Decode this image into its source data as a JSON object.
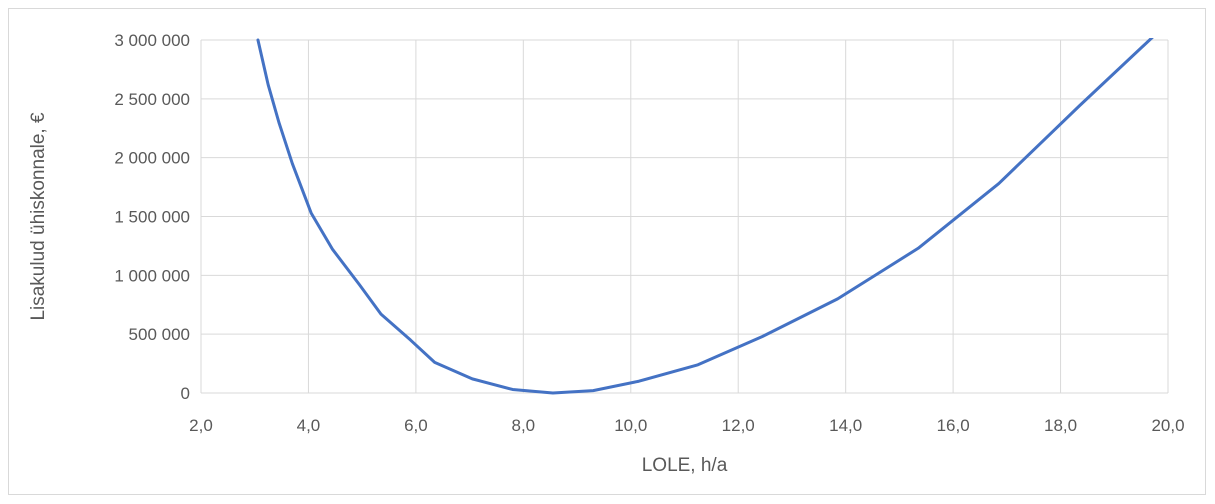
{
  "chart_data": {
    "type": "line",
    "xlabel": "LOLE, h/a",
    "ylabel": "Lisakulud ühiskonnale,  €",
    "xlim": [
      2,
      20
    ],
    "ylim": [
      0,
      3000000
    ],
    "x_ticks": [
      2,
      4,
      6,
      8,
      10,
      12,
      14,
      16,
      18,
      20
    ],
    "x_tick_labels": [
      "2,0",
      "4,0",
      "6,0",
      "8,0",
      "10,0",
      "12,0",
      "14,0",
      "16,0",
      "18,0",
      "20,0"
    ],
    "y_ticks": [
      0,
      500000,
      1000000,
      1500000,
      2000000,
      2500000,
      3000000
    ],
    "y_tick_labels": [
      "0",
      "500 000",
      "1 000 000",
      "1 500 000",
      "2 000 000",
      "2 500 000",
      "3 000 000"
    ],
    "grid": true,
    "line_color": "#4472c4",
    "series": [
      {
        "x": [
          3.06,
          3.25,
          3.45,
          3.7,
          4.05,
          4.45,
          4.95,
          5.35,
          5.9,
          6.35,
          7.05,
          7.8,
          8.55,
          9.3,
          10.15,
          11.25,
          12.45,
          13.85,
          15.35,
          16.85,
          18.35,
          19.75
        ],
        "values": [
          3000000,
          2620000,
          2300000,
          1950000,
          1530000,
          1220000,
          920000,
          670000,
          450000,
          260000,
          120000,
          30000,
          0,
          20000,
          100000,
          240000,
          480000,
          800000,
          1230000,
          1780000,
          2440000,
          3040000
        ]
      }
    ]
  }
}
